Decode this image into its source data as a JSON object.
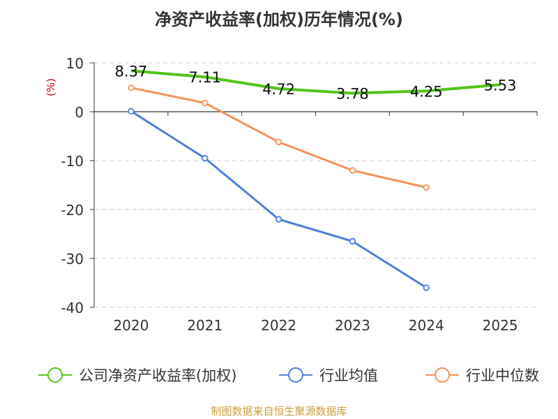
{
  "chart_data": {
    "type": "line",
    "title": "净资产收益率(加权)历年情况(%)",
    "ylabel": "(%)",
    "xlabel": "",
    "categories": [
      "2020",
      "2021",
      "2022",
      "2023",
      "2024",
      "2025"
    ],
    "ylim": [
      -40,
      10
    ],
    "yticks": [
      10,
      0,
      -10,
      -20,
      -30,
      -40
    ],
    "grid": true,
    "legend_position": "bottom",
    "series": [
      {
        "name": "公司净资产收益率(加权)",
        "color": "#52c41a",
        "values": [
          8.37,
          7.11,
          4.72,
          3.78,
          4.25,
          5.53
        ],
        "labels": [
          "8.37",
          "7.11",
          "4.72",
          "3.78",
          "4.25",
          "5.53"
        ],
        "show_markers": false
      },
      {
        "name": "行业均值",
        "color": "#4f7fd8",
        "values": [
          0.1,
          -9.5,
          -22.0,
          -26.5,
          -36.0,
          null
        ],
        "show_markers": true
      },
      {
        "name": "行业中位数",
        "color": "#f5925a",
        "values": [
          4.9,
          1.8,
          -6.2,
          -12.0,
          -15.5,
          null
        ],
        "show_markers": true
      }
    ]
  },
  "source": "制图数据来自恒生聚源数据库"
}
